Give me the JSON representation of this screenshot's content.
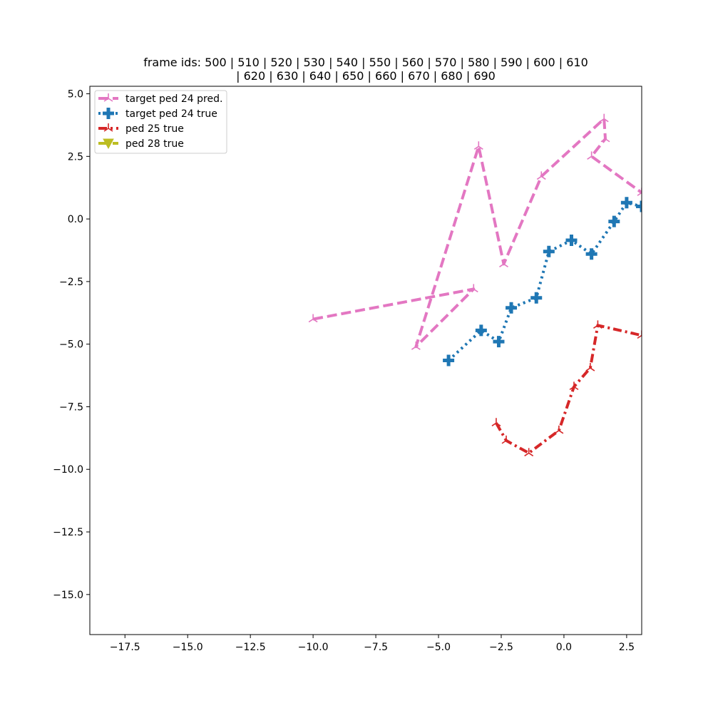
{
  "chart_data": {
    "type": "line",
    "title_lines": [
      "frame ids: 500 | 510 | 520 | 530 | 540 | 550 | 560 | 570 | 580 | 590 | 600 | 610",
      "| 620 | 630 | 640 | 650 | 660 | 670 | 680 | 690"
    ],
    "xlabel": "",
    "ylabel": "",
    "xlim": [
      -18.9,
      3.1
    ],
    "ylim": [
      -16.6,
      5.3
    ],
    "x_ticks": [
      -17.5,
      -15.0,
      -12.5,
      -10.0,
      -7.5,
      -5.0,
      -2.5,
      0.0,
      2.5
    ],
    "x_tick_labels": [
      "−17.5",
      "−15.0",
      "−12.5",
      "−10.0",
      "−7.5",
      "−5.0",
      "−2.5",
      "0.0",
      "2.5"
    ],
    "y_ticks": [
      5.0,
      2.5,
      0.0,
      -2.5,
      -5.0,
      -7.5,
      -10.0,
      -12.5,
      -15.0
    ],
    "y_tick_labels": [
      "5.0",
      "2.5",
      "0.0",
      "−2.5",
      "−5.0",
      "−7.5",
      "−10.0",
      "−12.5",
      "−15.0"
    ],
    "grid": false,
    "legend_position": "top-left",
    "series": [
      {
        "name": "target ped 24 pred.",
        "color": "#e377c2",
        "line_style": "dashed",
        "marker": "tri",
        "points": [
          [
            -10.0,
            -4.0
          ],
          [
            -3.6,
            -2.8
          ],
          [
            -5.9,
            -5.1
          ],
          [
            -3.4,
            2.9
          ],
          [
            -2.4,
            -1.8
          ],
          [
            -0.9,
            1.7
          ],
          [
            1.6,
            4.0
          ],
          [
            1.65,
            3.2
          ],
          [
            1.1,
            2.5
          ],
          [
            3.1,
            1.05
          ]
        ]
      },
      {
        "name": "target ped 24 true",
        "color": "#1f77b4",
        "line_style": "dotted",
        "marker": "plus",
        "points": [
          [
            -4.6,
            -5.65
          ],
          [
            -3.3,
            -4.45
          ],
          [
            -2.6,
            -4.9
          ],
          [
            -2.1,
            -3.55
          ],
          [
            -1.1,
            -3.15
          ],
          [
            -0.6,
            -1.3
          ],
          [
            0.3,
            -0.85
          ],
          [
            1.1,
            -1.4
          ],
          [
            2.0,
            -0.1
          ],
          [
            2.5,
            0.65
          ],
          [
            3.1,
            0.5
          ]
        ]
      },
      {
        "name": "ped 25 true",
        "color": "#d62728",
        "line_style": "dashdot",
        "marker": "tri",
        "points": [
          [
            -2.7,
            -8.15
          ],
          [
            -2.3,
            -8.85
          ],
          [
            -1.4,
            -9.35
          ],
          [
            -0.2,
            -8.45
          ],
          [
            0.4,
            -6.7
          ],
          [
            1.05,
            -5.95
          ],
          [
            1.35,
            -4.25
          ],
          [
            3.1,
            -4.65
          ]
        ]
      },
      {
        "name": "ped 28 true",
        "color": "#bcbd22",
        "line_style": "dashed",
        "marker": "triangle-down",
        "points": []
      }
    ]
  }
}
